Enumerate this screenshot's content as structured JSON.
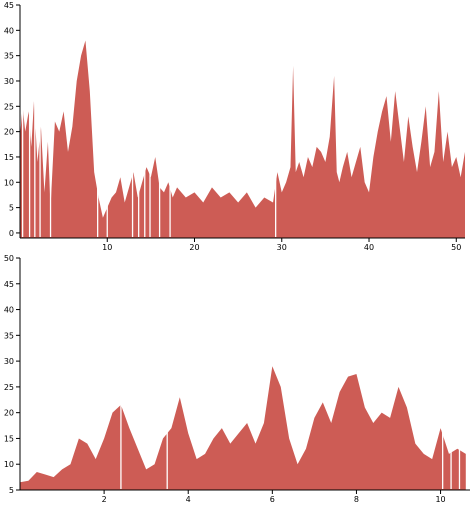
{
  "colors": {
    "area": "#cd5c55",
    "gap": "#ffffff",
    "axis": "#000000"
  },
  "chart_data": [
    {
      "type": "area",
      "title": "",
      "xlabel": "",
      "ylabel": "",
      "xlim": [
        0,
        51
      ],
      "ylim": [
        -1,
        45
      ],
      "xticks": [
        10,
        20,
        30,
        40,
        50
      ],
      "yticks": [
        0,
        5,
        10,
        15,
        20,
        25,
        30,
        35,
        40,
        45
      ],
      "grid": false,
      "gaps": [
        0.3,
        1.1,
        1.7,
        2.3,
        3.5,
        8.9,
        10.0,
        12.9,
        13.6,
        14.3,
        14.9,
        16.0,
        17.2,
        29.3
      ],
      "x": [
        0,
        0.3,
        0.6,
        1.0,
        1.3,
        1.6,
        2.0,
        2.4,
        2.8,
        3.2,
        3.5,
        4.0,
        4.5,
        5.0,
        5.5,
        6.0,
        6.5,
        7.0,
        7.5,
        8.0,
        8.5,
        9.0,
        9.5,
        10.0,
        10.5,
        11.0,
        11.5,
        12.0,
        12.5,
        13.0,
        13.5,
        14.0,
        14.5,
        15.0,
        15.5,
        16.0,
        16.5,
        17.0,
        17.5,
        18.0,
        19.0,
        20.0,
        21.0,
        22.0,
        23.0,
        24.0,
        25.0,
        26.0,
        27.0,
        28.0,
        29.0,
        29.5,
        30.0,
        30.5,
        31.0,
        31.3,
        31.6,
        32.0,
        32.5,
        33.0,
        33.5,
        34.0,
        34.5,
        35.0,
        35.5,
        36.0,
        36.3,
        36.6,
        37.0,
        37.5,
        38.0,
        38.5,
        39.0,
        39.5,
        40.0,
        40.5,
        41.0,
        41.5,
        42.0,
        42.5,
        43.0,
        43.5,
        44.0,
        44.5,
        45.0,
        45.5,
        46.0,
        46.5,
        47.0,
        47.5,
        48.0,
        48.5,
        49.0,
        49.5,
        50.0,
        50.5,
        51.0
      ],
      "values": [
        19,
        25,
        20,
        24,
        17,
        26,
        14,
        21,
        8,
        18,
        5,
        22,
        20,
        24,
        16,
        21,
        30,
        35,
        38,
        28,
        12,
        7,
        3,
        5,
        7,
        8,
        11,
        6,
        9,
        12,
        7,
        10,
        13,
        11,
        15,
        9,
        8,
        10,
        7,
        9,
        7,
        8,
        6,
        9,
        7,
        8,
        6,
        8,
        5,
        7,
        6,
        12,
        8,
        10,
        13,
        33,
        12,
        14,
        11,
        15,
        13,
        17,
        16,
        14,
        19,
        31,
        12,
        10,
        13,
        16,
        11,
        14,
        17,
        10,
        8,
        15,
        20,
        24,
        27,
        18,
        28,
        21,
        14,
        23,
        17,
        12,
        18,
        25,
        13,
        16,
        28,
        14,
        20,
        13,
        15,
        11,
        16
      ]
    },
    {
      "type": "area",
      "title": "",
      "xlabel": "",
      "ylabel": "",
      "xlim": [
        0,
        10.7
      ],
      "ylim": [
        5,
        50
      ],
      "xticks": [
        2,
        4,
        6,
        8,
        10
      ],
      "yticks": [
        5,
        10,
        15,
        20,
        25,
        30,
        35,
        40,
        45,
        50
      ],
      "grid": false,
      "gaps": [
        2.4,
        3.5,
        10.05,
        10.25,
        10.45
      ],
      "x": [
        0,
        0.2,
        0.4,
        0.6,
        0.8,
        1.0,
        1.2,
        1.4,
        1.6,
        1.8,
        2.0,
        2.2,
        2.4,
        2.6,
        2.8,
        3.0,
        3.2,
        3.4,
        3.6,
        3.8,
        4.0,
        4.2,
        4.4,
        4.6,
        4.8,
        5.0,
        5.2,
        5.4,
        5.6,
        5.8,
        6.0,
        6.2,
        6.4,
        6.6,
        6.8,
        7.0,
        7.2,
        7.4,
        7.6,
        7.8,
        8.0,
        8.2,
        8.4,
        8.6,
        8.8,
        9.0,
        9.2,
        9.4,
        9.6,
        9.8,
        10.0,
        10.2,
        10.4,
        10.6
      ],
      "values": [
        6.5,
        6.8,
        8.5,
        8,
        7.5,
        9,
        10,
        15,
        14,
        11,
        15,
        20,
        21.5,
        17,
        13,
        9,
        10,
        15,
        17,
        23,
        16,
        11,
        12,
        15,
        17,
        14,
        16,
        18,
        14,
        18,
        29,
        25,
        15,
        10,
        13,
        19,
        22,
        18,
        24,
        27,
        27.5,
        21,
        18,
        20,
        19,
        25,
        21,
        14,
        12,
        11,
        17,
        12,
        13,
        12
      ]
    }
  ]
}
